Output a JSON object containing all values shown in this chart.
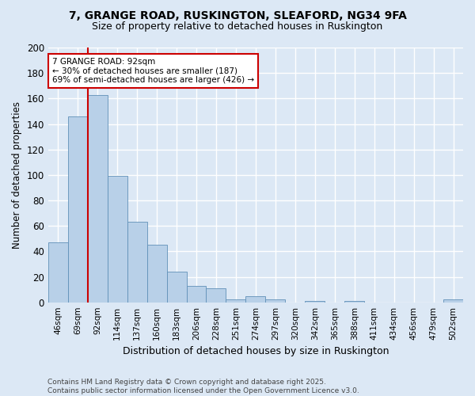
{
  "title1": "7, GRANGE ROAD, RUSKINGTON, SLEAFORD, NG34 9FA",
  "title2": "Size of property relative to detached houses in Ruskington",
  "xlabel": "Distribution of detached houses by size in Ruskington",
  "ylabel": "Number of detached properties",
  "categories": [
    "46sqm",
    "69sqm",
    "92sqm",
    "114sqm",
    "137sqm",
    "160sqm",
    "183sqm",
    "206sqm",
    "228sqm",
    "251sqm",
    "274sqm",
    "297sqm",
    "320sqm",
    "342sqm",
    "365sqm",
    "388sqm",
    "411sqm",
    "434sqm",
    "456sqm",
    "479sqm",
    "502sqm"
  ],
  "values": [
    47,
    146,
    163,
    99,
    63,
    45,
    24,
    13,
    11,
    2,
    5,
    2,
    0,
    1,
    0,
    1,
    0,
    0,
    0,
    0,
    2
  ],
  "bar_color": "#b8d0e8",
  "bar_edge_color": "#6090b8",
  "vline_color": "#cc0000",
  "annotation_text": "7 GRANGE ROAD: 92sqm\n← 30% of detached houses are smaller (187)\n69% of semi-detached houses are larger (426) →",
  "annotation_box_color": "#ffffff",
  "annotation_box_edge": "#cc0000",
  "ylim": [
    0,
    200
  ],
  "yticks": [
    0,
    20,
    40,
    60,
    80,
    100,
    120,
    140,
    160,
    180,
    200
  ],
  "bg_color": "#dce8f5",
  "grid_color": "#ffffff",
  "title1_fontsize": 10,
  "title2_fontsize": 9,
  "footer": "Contains HM Land Registry data © Crown copyright and database right 2025.\nContains public sector information licensed under the Open Government Licence v3.0."
}
